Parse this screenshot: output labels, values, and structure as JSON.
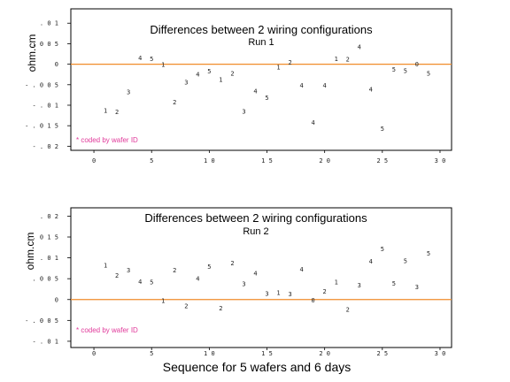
{
  "xlabel": "Sequence for 5 wafers and 6 days",
  "chart_data": [
    {
      "type": "scatter",
      "title": "Differences between 2 wiring configurations",
      "subtitle": "Run 1",
      "ylabel": "ohm.cm",
      "note": "* coded by wafer ID",
      "marker": "wafer ID digit",
      "xlim": [
        -2,
        31
      ],
      "ylim": [
        -0.021,
        0.0135
      ],
      "xticks": [
        0,
        5,
        10,
        15,
        20,
        25,
        30
      ],
      "xtick_labels": [
        "0",
        "5",
        "1 0",
        "1 5",
        "2 0",
        "2 5",
        "3 0"
      ],
      "yticks": [
        0.01,
        0.005,
        0,
        -0.005,
        -0.01,
        -0.015,
        -0.02
      ],
      "ytick_labels": [
        ". 0 1",
        ". 0 0 5",
        "0",
        "- . 0 0 5",
        "- . 0 1",
        "- . 0 1 5",
        "- . 0 2"
      ],
      "reference_line": 0,
      "points": [
        {
          "x": 1,
          "y": -0.0113,
          "label": "1"
        },
        {
          "x": 2,
          "y": -0.0116,
          "label": "2"
        },
        {
          "x": 3,
          "y": -0.0068,
          "label": "3"
        },
        {
          "x": 4,
          "y": 0.0015,
          "label": "4"
        },
        {
          "x": 5,
          "y": 0.0013,
          "label": "5"
        },
        {
          "x": 6,
          "y": -0.0001,
          "label": "1"
        },
        {
          "x": 7,
          "y": -0.0093,
          "label": "2"
        },
        {
          "x": 8,
          "y": -0.0044,
          "label": "3"
        },
        {
          "x": 9,
          "y": -0.0025,
          "label": "4"
        },
        {
          "x": 10,
          "y": -0.0017,
          "label": "5"
        },
        {
          "x": 11,
          "y": -0.0037,
          "label": "1"
        },
        {
          "x": 12,
          "y": -0.0022,
          "label": "2"
        },
        {
          "x": 13,
          "y": -0.0115,
          "label": "3"
        },
        {
          "x": 14,
          "y": -0.0066,
          "label": "4"
        },
        {
          "x": 15,
          "y": -0.0082,
          "label": "5"
        },
        {
          "x": 16,
          "y": -0.0007,
          "label": "1"
        },
        {
          "x": 17,
          "y": 0.0005,
          "label": "2"
        },
        {
          "x": 18,
          "y": -0.0052,
          "label": "4"
        },
        {
          "x": 19,
          "y": -0.0142,
          "label": "4"
        },
        {
          "x": 20,
          "y": -0.0051,
          "label": "4"
        },
        {
          "x": 21,
          "y": 0.0013,
          "label": "1"
        },
        {
          "x": 22,
          "y": 0.0012,
          "label": "2"
        },
        {
          "x": 23,
          "y": 0.0042,
          "label": "4"
        },
        {
          "x": 24,
          "y": -0.0061,
          "label": "4"
        },
        {
          "x": 25,
          "y": -0.0157,
          "label": "5"
        },
        {
          "x": 26,
          "y": -0.0013,
          "label": "5"
        },
        {
          "x": 27,
          "y": -0.0016,
          "label": "5"
        },
        {
          "x": 28,
          "y": 0.0,
          "label": "0"
        },
        {
          "x": 29,
          "y": -0.0022,
          "label": "5"
        }
      ]
    },
    {
      "type": "scatter",
      "title": "Differences between 2 wiring configurations",
      "subtitle": "Run 2",
      "ylabel": "ohm.cm",
      "note": "* coded by wafer ID",
      "marker": "wafer ID digit",
      "xlim": [
        -2,
        31
      ],
      "ylim": [
        -0.0115,
        0.022
      ],
      "xticks": [
        0,
        5,
        10,
        15,
        20,
        25,
        30
      ],
      "xtick_labels": [
        "0",
        "5",
        "1 0",
        "1 5",
        "2 0",
        "2 5",
        "3 0"
      ],
      "yticks": [
        0.02,
        0.015,
        0.01,
        0.005,
        0,
        -0.005,
        -0.01
      ],
      "ytick_labels": [
        ". 0 2",
        ". 0 1 5",
        ". 0 1",
        ". 0 0 5",
        "0",
        "- . 0 0 5",
        "- . 0 1"
      ],
      "reference_line": 0,
      "points": [
        {
          "x": 1,
          "y": 0.0082,
          "label": "1"
        },
        {
          "x": 2,
          "y": 0.0058,
          "label": "2"
        },
        {
          "x": 3,
          "y": 0.007,
          "label": "3"
        },
        {
          "x": 4,
          "y": 0.0043,
          "label": "4"
        },
        {
          "x": 5,
          "y": 0.0042,
          "label": "5"
        },
        {
          "x": 6,
          "y": -0.0003,
          "label": "1"
        },
        {
          "x": 7,
          "y": 0.0071,
          "label": "2"
        },
        {
          "x": 8,
          "y": -0.0015,
          "label": "2"
        },
        {
          "x": 9,
          "y": 0.005,
          "label": "4"
        },
        {
          "x": 10,
          "y": 0.0079,
          "label": "5"
        },
        {
          "x": 11,
          "y": -0.0021,
          "label": "2"
        },
        {
          "x": 12,
          "y": 0.0088,
          "label": "2"
        },
        {
          "x": 13,
          "y": 0.0038,
          "label": "3"
        },
        {
          "x": 14,
          "y": 0.0063,
          "label": "4"
        },
        {
          "x": 15,
          "y": 0.0014,
          "label": "3"
        },
        {
          "x": 16,
          "y": 0.0016,
          "label": "1"
        },
        {
          "x": 17,
          "y": 0.0013,
          "label": "3"
        },
        {
          "x": 18,
          "y": 0.0073,
          "label": "4"
        },
        {
          "x": 19,
          "y": -0.0002,
          "label": "0"
        },
        {
          "x": 20,
          "y": 0.002,
          "label": "2"
        },
        {
          "x": 21,
          "y": 0.0042,
          "label": "1"
        },
        {
          "x": 22,
          "y": -0.0024,
          "label": "2"
        },
        {
          "x": 23,
          "y": 0.0034,
          "label": "3"
        },
        {
          "x": 24,
          "y": 0.0092,
          "label": "4"
        },
        {
          "x": 25,
          "y": 0.0121,
          "label": "5"
        },
        {
          "x": 26,
          "y": 0.0039,
          "label": "5"
        },
        {
          "x": 27,
          "y": 0.0093,
          "label": "5"
        },
        {
          "x": 28,
          "y": 0.003,
          "label": "3"
        },
        {
          "x": 29,
          "y": 0.0111,
          "label": "5"
        }
      ]
    }
  ]
}
